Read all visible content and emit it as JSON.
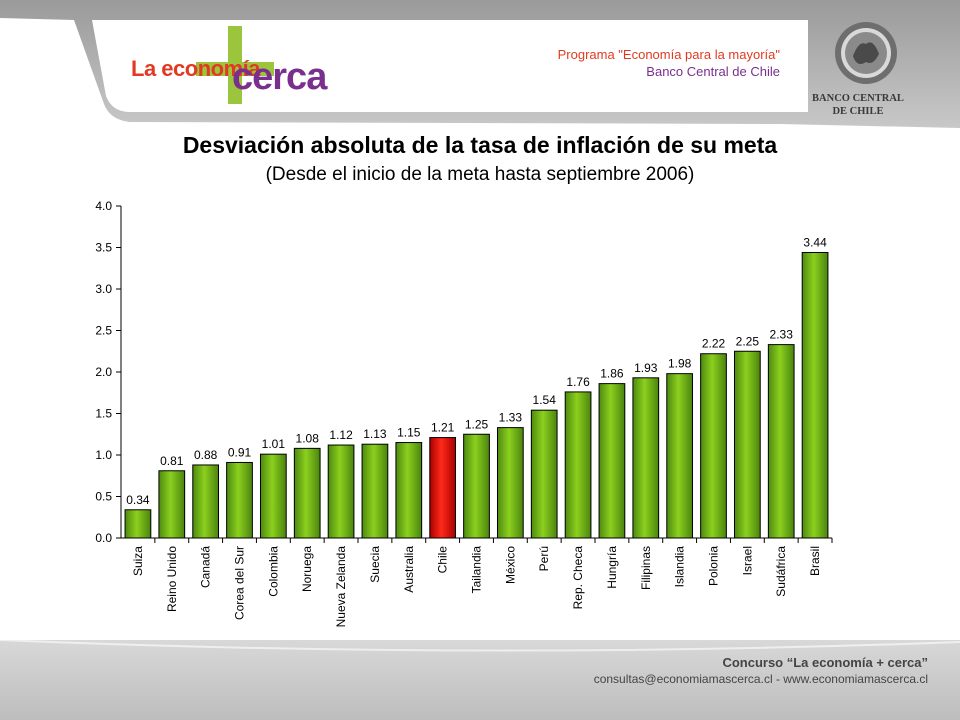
{
  "header": {
    "logo_line1": "La economía",
    "logo_line2": "cerca",
    "program_line1": "Programa \"Economía para la mayoría\"",
    "program_line2": "Banco Central de Chile",
    "bank_line1": "BANCO CENTRAL",
    "bank_line2": "DE CHILE"
  },
  "colors": {
    "bar": "#6aaa1a",
    "bar_highlight": "#dd1111",
    "logo_plus": "#9bc53d",
    "logo_red": "#e23a22",
    "logo_purple": "#7a2f8f"
  },
  "chart_data": {
    "type": "bar",
    "title": "Desviación absoluta de la tasa de inflación de su meta",
    "subtitle": "(Desde el inicio de la meta hasta septiembre 2006)",
    "categories": [
      "Suiza",
      "Reino Unido",
      "Canadá",
      "Corea del Sur",
      "Colombia",
      "Noruega",
      "Nueva Zelanda",
      "Suecia",
      "Australia",
      "Chile",
      "Tailandia",
      "México",
      "Perú",
      "Rep. Checa",
      "Hungría",
      "Filipinas",
      "Islandia",
      "Polonia",
      "Israel",
      "Sudáfrica",
      "Brasil"
    ],
    "values": [
      0.34,
      0.81,
      0.88,
      0.91,
      1.01,
      1.08,
      1.12,
      1.13,
      1.15,
      1.21,
      1.25,
      1.33,
      1.54,
      1.76,
      1.86,
      1.93,
      1.98,
      2.22,
      2.25,
      2.33,
      3.44
    ],
    "value_labels": [
      "0.34",
      "0.81",
      "0.88",
      "0.91",
      "1.01",
      "1.08",
      "1.12",
      "1.13",
      "1.15",
      "1.21",
      "1.25",
      "1.33",
      "1.54",
      "1.76",
      "1.86",
      "1.93",
      "1.98",
      "2.22",
      "2.25",
      "2.33",
      "3.44"
    ],
    "highlight": "Chile",
    "ylim": [
      0,
      4
    ],
    "yticks": [
      "0.0",
      "0.5",
      "1.0",
      "1.5",
      "2.0",
      "2.5",
      "3.0",
      "3.5",
      "4.0"
    ],
    "xlabel": "",
    "ylabel": "",
    "grid": false
  },
  "footer": {
    "title": "Concurso “La economía + cerca”",
    "links": "consultas@economiamascerca.cl  -  www.economiamascerca.cl"
  }
}
